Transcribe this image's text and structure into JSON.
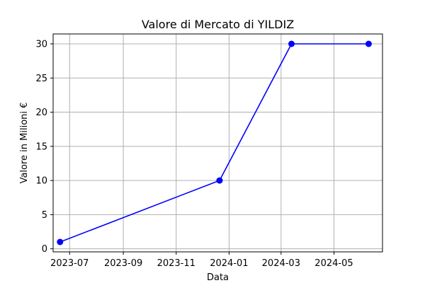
{
  "chart_data": {
    "type": "line",
    "title": "Valore di Mercato di YILDIZ",
    "xlabel": "Data",
    "ylabel": "Valore in Milioni €",
    "x_tick_labels": [
      "2023-07",
      "2023-09",
      "2023-11",
      "2024-01",
      "2024-03",
      "2024-05"
    ],
    "x_tick_dates": [
      "2023-07-01",
      "2023-09-01",
      "2023-11-01",
      "2024-01-01",
      "2024-03-01",
      "2024-05-01"
    ],
    "y_ticks": [
      0,
      5,
      10,
      15,
      20,
      25,
      30
    ],
    "xlim": [
      "2023-06-12",
      "2024-06-26"
    ],
    "ylim": [
      -0.45,
      31.45
    ],
    "grid": true,
    "series": [
      {
        "color": "#0000ff",
        "marker": "circle",
        "x": [
          "2023-06-20",
          "2023-12-21",
          "2024-03-13",
          "2024-06-10"
        ],
        "y": [
          1,
          10,
          30,
          30
        ]
      }
    ]
  }
}
